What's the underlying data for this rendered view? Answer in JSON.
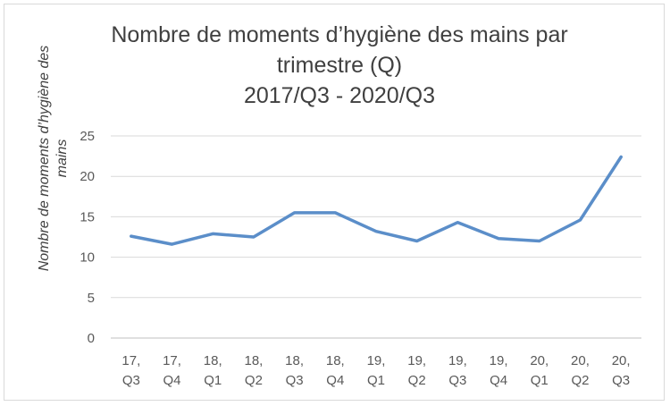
{
  "chart_data": {
    "type": "line",
    "title_lines": [
      "Nombre de moments d’hygiène des mains par",
      "trimestre (Q)",
      "2017/Q3 - 2020/Q3"
    ],
    "xlabel": "",
    "ylabel_lines": [
      "Nombre de moments d’hygiène des",
      "mains"
    ],
    "categories": [
      [
        "17,",
        "Q3"
      ],
      [
        "17,",
        "Q4"
      ],
      [
        "18,",
        "Q1"
      ],
      [
        "18,",
        "Q2"
      ],
      [
        "18,",
        "Q3"
      ],
      [
        "18,",
        "Q4"
      ],
      [
        "19,",
        "Q1"
      ],
      [
        "19,",
        "Q2"
      ],
      [
        "19,",
        "Q3"
      ],
      [
        "19,",
        "Q4"
      ],
      [
        "20,",
        "Q1"
      ],
      [
        "20,",
        "Q2"
      ],
      [
        "20,",
        "Q3"
      ]
    ],
    "series": [
      {
        "values": [
          12.6,
          11.6,
          12.9,
          12.5,
          15.5,
          15.5,
          13.2,
          12.0,
          14.3,
          12.3,
          12.0,
          14.6,
          22.4
        ],
        "color": "#5b8ec9"
      }
    ],
    "yticks": [
      0,
      5,
      10,
      15,
      20,
      25
    ],
    "ylim": [
      0,
      25
    ],
    "grid": true,
    "legend": "none"
  }
}
